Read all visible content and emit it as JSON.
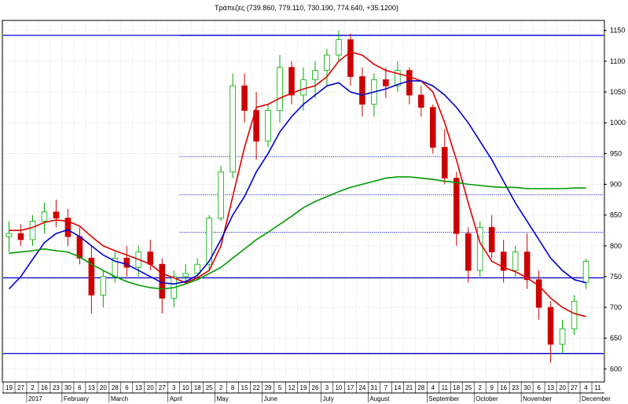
{
  "chart_data": {
    "type": "candlestick",
    "title": "Τράπεζες (739.860, 779.110, 730.190, 774.640, +35.1200)",
    "y_ticks": [
      600,
      650,
      700,
      750,
      800,
      850,
      900,
      950,
      1000,
      1050,
      1100,
      1150
    ],
    "ylim": [
      580,
      1165
    ],
    "y_axis_position": "right",
    "x_day_labels": [
      "19",
      "27",
      "2",
      "16",
      "23",
      "30",
      "6",
      "13",
      "20",
      "28",
      "6",
      "13",
      "20",
      "27",
      "3",
      "10",
      "18",
      "25",
      "2",
      "8",
      "15",
      "22",
      "29",
      "5",
      "12",
      "19",
      "26",
      "3",
      "10",
      "17",
      "24",
      "31",
      "7",
      "14",
      "21",
      "28",
      "4",
      "11",
      "18",
      "25",
      "2",
      "9",
      "16",
      "23",
      "30",
      "6",
      "13",
      "20",
      "27",
      "4",
      "11"
    ],
    "x_month_labels": [
      {
        "label": "2017",
        "at_day_index": 2
      },
      {
        "label": "February",
        "at_day_index": 5
      },
      {
        "label": "March",
        "at_day_index": 9
      },
      {
        "label": "April",
        "at_day_index": 14
      },
      {
        "label": "May",
        "at_day_index": 18
      },
      {
        "label": "June",
        "at_day_index": 22
      },
      {
        "label": "July",
        "at_day_index": 27
      },
      {
        "label": "August",
        "at_day_index": 31
      },
      {
        "label": "September",
        "at_day_index": 36
      },
      {
        "label": "October",
        "at_day_index": 40
      },
      {
        "label": "November",
        "at_day_index": 44
      },
      {
        "label": "December",
        "at_day_index": 49
      }
    ],
    "horizontal_lines": [
      {
        "value": 1142,
        "style": "solid",
        "color": "#0000cc",
        "from_day_index": 0
      },
      {
        "value": 748,
        "style": "solid",
        "color": "#0000cc",
        "from_day_index": 0
      },
      {
        "value": 625,
        "style": "solid",
        "color": "#0000cc",
        "from_day_index": 0
      },
      {
        "value": 625,
        "style": "solid",
        "color": "#0000cc",
        "from_day_index": 15
      },
      {
        "value": 1142,
        "style": "solid",
        "color": "#0000cc",
        "from_day_index": 15
      },
      {
        "value": 945,
        "style": "dotted",
        "color": "#0000cc",
        "from_day_index": 15
      },
      {
        "value": 883,
        "style": "dotted",
        "color": "#0000cc",
        "from_day_index": 15
      },
      {
        "value": 822,
        "style": "dotted",
        "color": "#0000cc",
        "from_day_index": 15
      },
      {
        "value": 748,
        "style": "dotted",
        "color": "#0000cc",
        "from_day_index": 15
      }
    ],
    "moving_averages": [
      {
        "color": "#dd0000",
        "points": [
          [
            0,
            825
          ],
          [
            1,
            825
          ],
          [
            2,
            830
          ],
          [
            3,
            838
          ],
          [
            4,
            842
          ],
          [
            5,
            840
          ],
          [
            6,
            832
          ],
          [
            7,
            815
          ],
          [
            8,
            800
          ],
          [
            9,
            792
          ],
          [
            10,
            785
          ],
          [
            11,
            778
          ],
          [
            12,
            770
          ],
          [
            13,
            755
          ],
          [
            14,
            748
          ],
          [
            15,
            740
          ],
          [
            16,
            748
          ],
          [
            17,
            760
          ],
          [
            18,
            800
          ],
          [
            19,
            880
          ],
          [
            20,
            960
          ],
          [
            21,
            1025
          ],
          [
            22,
            1030
          ],
          [
            23,
            1040
          ],
          [
            24,
            1048
          ],
          [
            25,
            1055
          ],
          [
            26,
            1060
          ],
          [
            27,
            1075
          ],
          [
            28,
            1100
          ],
          [
            29,
            1115
          ],
          [
            30,
            1110
          ],
          [
            31,
            1095
          ],
          [
            32,
            1085
          ],
          [
            33,
            1080
          ],
          [
            34,
            1075
          ],
          [
            35,
            1068
          ],
          [
            36,
            1050
          ],
          [
            37,
            1000
          ],
          [
            38,
            940
          ],
          [
            39,
            870
          ],
          [
            40,
            805
          ],
          [
            41,
            775
          ],
          [
            42,
            765
          ],
          [
            43,
            758
          ],
          [
            44,
            748
          ],
          [
            45,
            735
          ],
          [
            46,
            715
          ],
          [
            47,
            700
          ],
          [
            48,
            690
          ],
          [
            49,
            685
          ]
        ]
      },
      {
        "color": "#0000cc",
        "points": [
          [
            0,
            730
          ],
          [
            1,
            750
          ],
          [
            2,
            778
          ],
          [
            3,
            805
          ],
          [
            4,
            820
          ],
          [
            5,
            826
          ],
          [
            6,
            815
          ],
          [
            7,
            800
          ],
          [
            8,
            785
          ],
          [
            9,
            775
          ],
          [
            10,
            770
          ],
          [
            11,
            760
          ],
          [
            12,
            750
          ],
          [
            13,
            740
          ],
          [
            14,
            738
          ],
          [
            15,
            742
          ],
          [
            16,
            752
          ],
          [
            17,
            775
          ],
          [
            18,
            810
          ],
          [
            19,
            850
          ],
          [
            20,
            880
          ],
          [
            21,
            920
          ],
          [
            22,
            950
          ],
          [
            23,
            985
          ],
          [
            24,
            1010
          ],
          [
            25,
            1030
          ],
          [
            26,
            1045
          ],
          [
            27,
            1060
          ],
          [
            28,
            1065
          ],
          [
            29,
            1050
          ],
          [
            30,
            1045
          ],
          [
            31,
            1050
          ],
          [
            32,
            1055
          ],
          [
            33,
            1062
          ],
          [
            34,
            1068
          ],
          [
            35,
            1068
          ],
          [
            36,
            1060
          ],
          [
            37,
            1045
          ],
          [
            38,
            1025
          ],
          [
            39,
            1000
          ],
          [
            40,
            970
          ],
          [
            41,
            940
          ],
          [
            42,
            905
          ],
          [
            43,
            870
          ],
          [
            44,
            840
          ],
          [
            45,
            810
          ],
          [
            46,
            780
          ],
          [
            47,
            760
          ],
          [
            48,
            745
          ],
          [
            49,
            740
          ]
        ]
      },
      {
        "color": "#009900",
        "points": [
          [
            0,
            788
          ],
          [
            1,
            790
          ],
          [
            2,
            792
          ],
          [
            3,
            795
          ],
          [
            4,
            792
          ],
          [
            5,
            790
          ],
          [
            6,
            782
          ],
          [
            7,
            770
          ],
          [
            8,
            760
          ],
          [
            9,
            750
          ],
          [
            10,
            742
          ],
          [
            11,
            736
          ],
          [
            12,
            732
          ],
          [
            13,
            730
          ],
          [
            14,
            732
          ],
          [
            15,
            738
          ],
          [
            16,
            745
          ],
          [
            17,
            755
          ],
          [
            18,
            765
          ],
          [
            19,
            780
          ],
          [
            20,
            795
          ],
          [
            21,
            810
          ],
          [
            22,
            822
          ],
          [
            23,
            835
          ],
          [
            24,
            848
          ],
          [
            25,
            862
          ],
          [
            26,
            872
          ],
          [
            27,
            880
          ],
          [
            28,
            888
          ],
          [
            29,
            895
          ],
          [
            30,
            900
          ],
          [
            31,
            905
          ],
          [
            32,
            910
          ],
          [
            33,
            912
          ],
          [
            34,
            912
          ],
          [
            35,
            910
          ],
          [
            36,
            908
          ],
          [
            37,
            905
          ],
          [
            38,
            903
          ],
          [
            39,
            900
          ],
          [
            40,
            898
          ],
          [
            41,
            896
          ],
          [
            42,
            895
          ],
          [
            43,
            895
          ],
          [
            44,
            893
          ],
          [
            45,
            893
          ],
          [
            46,
            893
          ],
          [
            47,
            893
          ],
          [
            48,
            894
          ],
          [
            49,
            894
          ]
        ]
      }
    ],
    "candles": [
      [
        0,
        815,
        840,
        790,
        820
      ],
      [
        1,
        820,
        835,
        800,
        810
      ],
      [
        2,
        810,
        850,
        800,
        840
      ],
      [
        3,
        840,
        870,
        820,
        855
      ],
      [
        4,
        855,
        875,
        830,
        845
      ],
      [
        5,
        845,
        860,
        800,
        815
      ],
      [
        6,
        815,
        830,
        770,
        780
      ],
      [
        7,
        780,
        800,
        690,
        720
      ],
      [
        8,
        720,
        760,
        700,
        750
      ],
      [
        9,
        750,
        790,
        740,
        780
      ],
      [
        10,
        780,
        800,
        750,
        765
      ],
      [
        11,
        765,
        800,
        750,
        790
      ],
      [
        12,
        790,
        810,
        760,
        770
      ],
      [
        13,
        770,
        780,
        690,
        715
      ],
      [
        14,
        715,
        760,
        700,
        750
      ],
      [
        15,
        750,
        770,
        740,
        755
      ],
      [
        16,
        755,
        780,
        745,
        770
      ],
      [
        17,
        770,
        850,
        760,
        845
      ],
      [
        18,
        845,
        930,
        840,
        920
      ],
      [
        19,
        920,
        1080,
        910,
        1060
      ],
      [
        20,
        1060,
        1080,
        1000,
        1020
      ],
      [
        21,
        1020,
        1050,
        940,
        970
      ],
      [
        22,
        970,
        1030,
        960,
        1020
      ],
      [
        23,
        1020,
        1110,
        1000,
        1090
      ],
      [
        24,
        1090,
        1100,
        1030,
        1045
      ],
      [
        25,
        1045,
        1090,
        1020,
        1070
      ],
      [
        26,
        1070,
        1100,
        1040,
        1085
      ],
      [
        27,
        1085,
        1120,
        1060,
        1110
      ],
      [
        28,
        1110,
        1150,
        1100,
        1135
      ],
      [
        29,
        1135,
        1145,
        1060,
        1075
      ],
      [
        30,
        1075,
        1090,
        1010,
        1030
      ],
      [
        31,
        1030,
        1080,
        1010,
        1070
      ],
      [
        32,
        1070,
        1090,
        1040,
        1060
      ],
      [
        33,
        1060,
        1100,
        1050,
        1085
      ],
      [
        34,
        1085,
        1090,
        1030,
        1045
      ],
      [
        35,
        1045,
        1060,
        1010,
        1025
      ],
      [
        36,
        1025,
        1030,
        950,
        960
      ],
      [
        37,
        960,
        990,
        900,
        910
      ],
      [
        38,
        910,
        920,
        800,
        820
      ],
      [
        39,
        820,
        830,
        740,
        760
      ],
      [
        40,
        760,
        840,
        750,
        830
      ],
      [
        41,
        830,
        850,
        780,
        790
      ],
      [
        42,
        790,
        810,
        740,
        760
      ],
      [
        43,
        760,
        800,
        750,
        790
      ],
      [
        44,
        790,
        820,
        730,
        745
      ],
      [
        45,
        745,
        760,
        680,
        700
      ],
      [
        46,
        700,
        710,
        610,
        640
      ],
      [
        47,
        640,
        680,
        625,
        665
      ],
      [
        48,
        665,
        720,
        655,
        710
      ],
      [
        49,
        740,
        779,
        730,
        775
      ]
    ]
  }
}
